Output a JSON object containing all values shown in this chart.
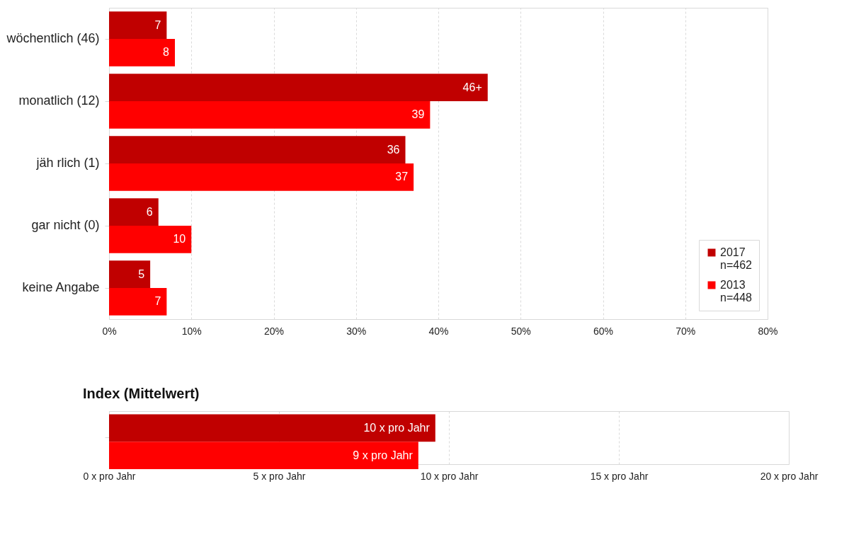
{
  "chart_data": [
    {
      "type": "bar",
      "orientation": "horizontal",
      "categories": [
        "wöchentlich (46)",
        "monatlich (12)",
        "jäh rlich (1)",
        "gar nicht (0)",
        "keine Angabe"
      ],
      "series": [
        {
          "name": "2017\nn=462",
          "color": "#c00000",
          "values": [
            7,
            46,
            36,
            6,
            5
          ],
          "value_labels": [
            "7",
            "46+",
            "36",
            "6",
            "5"
          ]
        },
        {
          "name": "2013\nn=448",
          "color": "#ff0000",
          "values": [
            8,
            39,
            37,
            10,
            7
          ],
          "value_labels": [
            "8",
            "39",
            "37",
            "10",
            "7"
          ]
        }
      ],
      "xlim": [
        0,
        80
      ],
      "xticks": [
        {
          "value": 0,
          "label": "0%"
        },
        {
          "value": 10,
          "label": "10%"
        },
        {
          "value": 20,
          "label": "20%"
        },
        {
          "value": 30,
          "label": "30%"
        },
        {
          "value": 40,
          "label": "40%"
        },
        {
          "value": 50,
          "label": "50%"
        },
        {
          "value": 60,
          "label": "60%"
        },
        {
          "value": 70,
          "label": "70%"
        },
        {
          "value": 80,
          "label": "80%"
        }
      ],
      "grid": "x",
      "legend": "bottom right"
    },
    {
      "type": "bar",
      "orientation": "horizontal",
      "title": "Index (Mittelwert)",
      "categories": [
        null
      ],
      "series": [
        {
          "color": "#c00000",
          "values": [
            9.6
          ],
          "value_labels": [
            "10 x pro Jahr"
          ]
        },
        {
          "color": "#ff0000",
          "values": [
            9.1
          ],
          "value_labels": [
            "9 x pro Jahr"
          ]
        }
      ],
      "xlim": [
        0,
        20
      ],
      "xticks": [
        {
          "value": 0,
          "label": "0 x pro Jahr"
        },
        {
          "value": 5,
          "label": "5 x pro Jahr"
        },
        {
          "value": 10,
          "label": "10 x pro Jahr"
        },
        {
          "value": 15,
          "label": "15 x pro Jahr"
        },
        {
          "value": 20,
          "label": "20 x pro Jahr"
        }
      ],
      "grid": "x",
      "tick_labels": "x"
    }
  ]
}
